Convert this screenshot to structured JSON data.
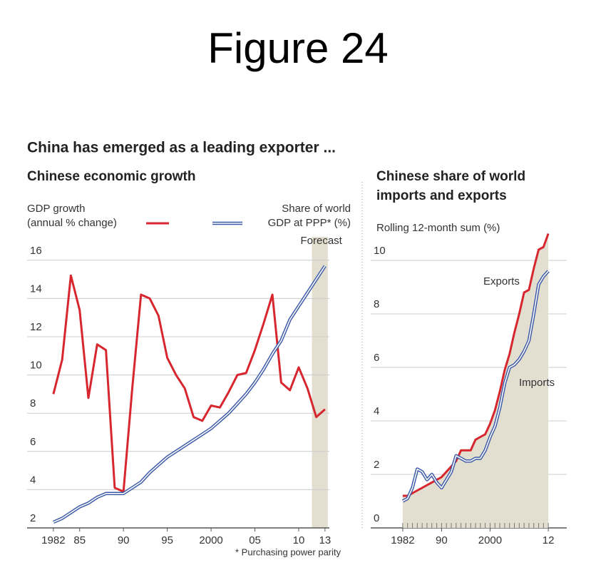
{
  "title": "Figure 24",
  "heading": "China has emerged as a leading exporter ...",
  "footnote": "* Purchasing power parity",
  "chart_data": [
    {
      "type": "line",
      "title": "Chinese economic growth",
      "annotation": "Forecast",
      "forecast_span": [
        2012,
        2013
      ],
      "x": [
        1982,
        1983,
        1984,
        1985,
        1986,
        1987,
        1988,
        1989,
        1990,
        1991,
        1992,
        1993,
        1994,
        1995,
        1996,
        1997,
        1998,
        1999,
        2000,
        2001,
        2002,
        2003,
        2004,
        2005,
        2006,
        2007,
        2008,
        2009,
        2010,
        2011,
        2012,
        2013
      ],
      "series": [
        {
          "name": "GDP growth",
          "name_detail": "(annual % change)",
          "color": "#d7262e",
          "style": "single",
          "values": [
            9.0,
            10.8,
            15.2,
            13.4,
            8.8,
            11.6,
            11.3,
            4.1,
            3.9,
            9.3,
            14.2,
            14.0,
            13.1,
            10.9,
            10.0,
            9.3,
            7.8,
            7.6,
            8.4,
            8.3,
            9.1,
            10.0,
            10.1,
            11.3,
            12.7,
            14.2,
            9.6,
            9.2,
            10.4,
            9.3,
            7.8,
            8.2
          ]
        },
        {
          "name": "Share of world",
          "name_detail": "GDP at PPP* (%)",
          "color": "#3b5aa6",
          "style": "double",
          "values": [
            2.3,
            2.5,
            2.8,
            3.1,
            3.3,
            3.6,
            3.8,
            3.8,
            3.8,
            4.1,
            4.4,
            4.9,
            5.3,
            5.7,
            6.0,
            6.3,
            6.6,
            6.9,
            7.2,
            7.6,
            8.0,
            8.5,
            9.0,
            9.6,
            10.3,
            11.1,
            11.8,
            12.9,
            13.6,
            14.3,
            15.0,
            15.7
          ]
        }
      ],
      "xlim": [
        1979,
        2013.5
      ],
      "xticks": [
        1982,
        {
          "value": 1985,
          "label": "85"
        },
        {
          "value": 1990,
          "label": "90"
        },
        {
          "value": 1995,
          "label": "95"
        },
        2000,
        {
          "value": 2005,
          "label": "05"
        },
        {
          "value": 2010,
          "label": "10"
        },
        {
          "value": 2013,
          "label": "13"
        }
      ],
      "ylim": [
        2,
        17
      ],
      "yticks": [
        2,
        4,
        6,
        8,
        10,
        12,
        14,
        16
      ],
      "grid": true
    },
    {
      "type": "line",
      "title": [
        "Chinese share of world",
        "imports and exports"
      ],
      "y_label": "Rolling 12-month sum (%)",
      "area_color": "#e3dfd0",
      "x": [
        1982,
        1983,
        1984,
        1985,
        1986,
        1987,
        1988,
        1989,
        1990,
        1991,
        1992,
        1993,
        1994,
        1995,
        1996,
        1997,
        1998,
        1999,
        2000,
        2001,
        2002,
        2003,
        2004,
        2005,
        2006,
        2007,
        2008,
        2009,
        2010,
        2011,
        2012
      ],
      "series": [
        {
          "name": "Exports",
          "color": "#d7262e",
          "style": "single",
          "area": true,
          "values": [
            1.2,
            1.2,
            1.3,
            1.4,
            1.5,
            1.6,
            1.7,
            1.8,
            1.9,
            2.1,
            2.3,
            2.5,
            2.9,
            2.9,
            2.9,
            3.3,
            3.4,
            3.5,
            3.9,
            4.4,
            5.1,
            5.9,
            6.5,
            7.3,
            8.0,
            8.8,
            8.9,
            9.7,
            10.4,
            10.5,
            11.0
          ]
        },
        {
          "name": "Imports",
          "color": "#3b5aa6",
          "style": "double",
          "values": [
            1.0,
            1.1,
            1.5,
            2.2,
            2.1,
            1.8,
            2.0,
            1.7,
            1.5,
            1.8,
            2.1,
            2.7,
            2.6,
            2.5,
            2.5,
            2.6,
            2.6,
            2.9,
            3.4,
            3.8,
            4.5,
            5.4,
            6.0,
            6.1,
            6.3,
            6.6,
            7.0,
            8.0,
            9.1,
            9.4,
            9.6
          ]
        }
      ],
      "xlim": [
        1975.4,
        2015.8
      ],
      "xticks": [
        1982,
        {
          "value": 1990,
          "label": "90"
        },
        2000,
        {
          "value": 2012,
          "label": "12"
        }
      ],
      "xminorticks": [
        1982,
        1983,
        1984,
        1985,
        1986,
        1987,
        1988,
        1989,
        1990,
        1991,
        1992,
        1993,
        1994,
        1995,
        1996,
        1997,
        1998,
        1999,
        2000,
        2001,
        2002,
        2003,
        2004,
        2005,
        2006,
        2007,
        2008,
        2009,
        2010,
        2011,
        2012
      ],
      "ylim": [
        0,
        11
      ],
      "yticks": [
        0,
        2,
        4,
        6,
        8,
        10
      ],
      "grid": true
    }
  ]
}
